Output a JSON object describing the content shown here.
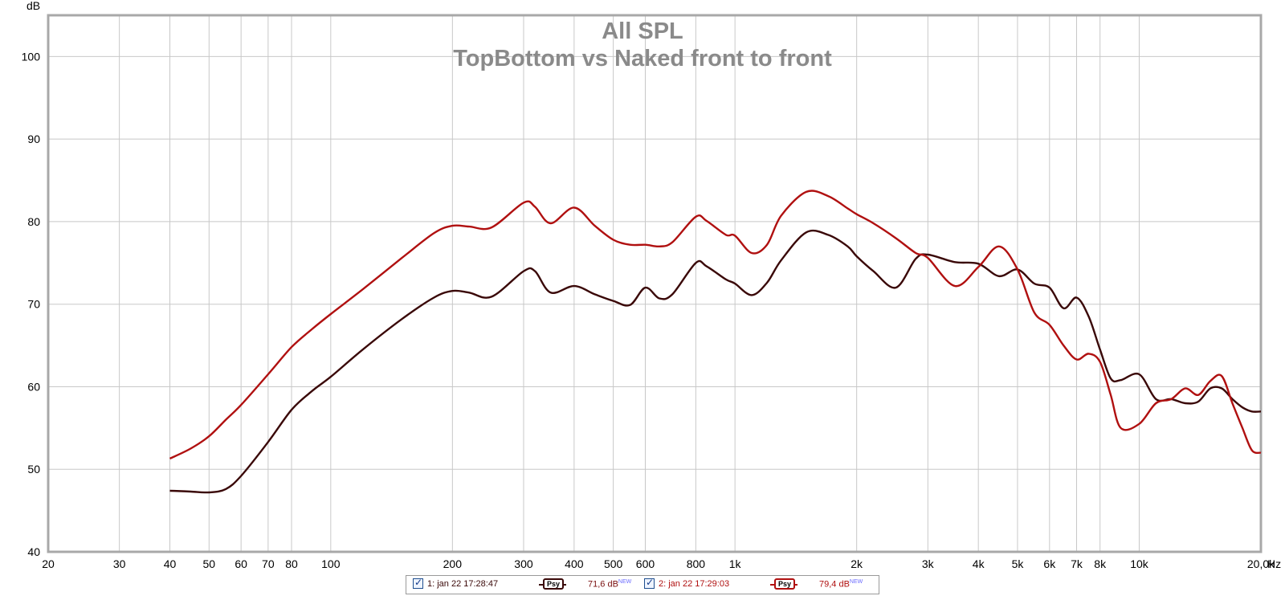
{
  "chart_data": {
    "type": "line",
    "title": "All SPL",
    "subtitle": "TopBottom vs Naked front to front",
    "xlabel": "Hz",
    "ylabel": "dB",
    "x_scale": "log",
    "xlim": [
      20,
      20000
    ],
    "ylim": [
      40,
      105
    ],
    "grid": true,
    "x_ticks": [
      20,
      30,
      40,
      50,
      60,
      70,
      80,
      100,
      200,
      300,
      400,
      500,
      600,
      800,
      1000,
      2000,
      3000,
      4000,
      5000,
      6000,
      7000,
      8000,
      10000,
      20000
    ],
    "x_tick_labels": [
      "20",
      "30",
      "40",
      "50",
      "60",
      "70",
      "80",
      "100",
      "200",
      "300",
      "400",
      "500",
      "600",
      "800",
      "1k",
      "2k",
      "3k",
      "4k",
      "5k",
      "6k",
      "7k",
      "8k",
      "10k",
      "20,0k"
    ],
    "y_ticks": [
      40,
      50,
      60,
      70,
      80,
      90,
      100
    ],
    "y_tick_labels": [
      "40",
      "50",
      "60",
      "70",
      "80",
      "90",
      "100"
    ],
    "series": [
      {
        "name": "1: jan 22 17:28:47",
        "color": "#3a0808",
        "x": [
          40,
          45,
          50,
          55,
          60,
          70,
          80,
          90,
          100,
          120,
          150,
          180,
          200,
          220,
          250,
          300,
          320,
          350,
          400,
          450,
          500,
          550,
          600,
          650,
          700,
          800,
          850,
          950,
          1000,
          1100,
          1200,
          1300,
          1500,
          1700,
          1900,
          2000,
          2200,
          2500,
          2800,
          3000,
          3500,
          4000,
          4500,
          5000,
          5500,
          6000,
          6500,
          7000,
          7500,
          8000,
          8500,
          9000,
          10000,
          11000,
          12000,
          13000,
          14000,
          15000,
          16000,
          17000,
          18000,
          19000,
          20000
        ],
        "values": [
          47.4,
          47.3,
          47.2,
          47.6,
          49.2,
          53.3,
          57.2,
          59.5,
          61.2,
          64.5,
          68.2,
          70.8,
          71.6,
          71.4,
          70.9,
          74.0,
          74.0,
          71.4,
          72.2,
          71.2,
          70.4,
          69.9,
          72.0,
          70.7,
          71.2,
          75.0,
          74.6,
          73.0,
          72.5,
          71.1,
          72.6,
          75.3,
          78.7,
          78.4,
          77.0,
          75.8,
          74.0,
          72.0,
          75.5,
          76.0,
          75.1,
          74.9,
          73.4,
          74.2,
          72.5,
          72.0,
          69.5,
          70.8,
          68.5,
          64.5,
          61.0,
          60.8,
          61.5,
          58.5,
          58.5,
          58.0,
          58.2,
          59.8,
          59.8,
          58.5,
          57.5,
          57.0,
          57.0
        ]
      },
      {
        "name": "2: jan 22 17:29:03",
        "color": "#b01010",
        "x": [
          40,
          45,
          50,
          55,
          60,
          70,
          80,
          90,
          100,
          120,
          150,
          180,
          200,
          220,
          250,
          300,
          320,
          350,
          400,
          450,
          500,
          550,
          600,
          650,
          700,
          800,
          850,
          950,
          1000,
          1100,
          1200,
          1300,
          1500,
          1700,
          1900,
          2000,
          2200,
          2500,
          2800,
          3000,
          3500,
          4000,
          4500,
          5000,
          5500,
          6000,
          6500,
          7000,
          7500,
          8000,
          8500,
          9000,
          10000,
          11000,
          12000,
          13000,
          14000,
          15000,
          16000,
          17000,
          18000,
          19000,
          20000
        ],
        "values": [
          51.3,
          52.5,
          54.0,
          56.0,
          57.8,
          61.5,
          64.8,
          67.0,
          68.8,
          71.8,
          75.6,
          78.6,
          79.5,
          79.4,
          79.3,
          82.3,
          81.8,
          79.8,
          81.7,
          79.5,
          77.8,
          77.2,
          77.2,
          77.0,
          77.5,
          80.6,
          80.1,
          78.4,
          78.3,
          76.2,
          77.2,
          80.7,
          83.6,
          83.1,
          81.6,
          80.9,
          79.8,
          78.0,
          76.2,
          75.6,
          72.2,
          74.5,
          77.0,
          74.2,
          69.0,
          67.5,
          65.0,
          63.3,
          64.0,
          63.0,
          59.0,
          55.0,
          55.5,
          58.0,
          58.5,
          59.8,
          59.0,
          60.7,
          61.3,
          58.0,
          55.0,
          52.3,
          52.0
        ]
      }
    ],
    "legend": {
      "placement": "bottom-center",
      "entries": [
        {
          "label": "1: jan 22 17:28:47",
          "badge": "Psy",
          "value": "71,6 dB",
          "value_sup": "NEW",
          "checked": true
        },
        {
          "label": "2: jan 22 17:29:03",
          "badge": "Psy",
          "value": "79,4 dB",
          "value_sup": "NEW",
          "checked": true
        }
      ]
    }
  }
}
